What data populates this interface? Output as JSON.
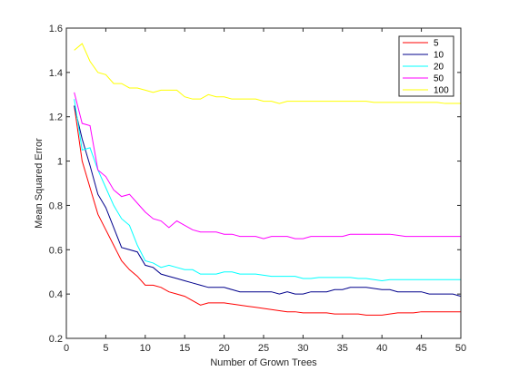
{
  "chart_data": {
    "type": "line",
    "xlabel": "Number of Grown Trees",
    "ylabel": "Mean Squared Error",
    "xlim": [
      0,
      50
    ],
    "ylim": [
      0.2,
      1.6
    ],
    "xticks": [
      0,
      5,
      10,
      15,
      20,
      25,
      30,
      35,
      40,
      45,
      50
    ],
    "yticks": [
      0.2,
      0.4,
      0.6,
      0.8,
      1.0,
      1.2,
      1.4,
      1.6
    ],
    "xtick_labels": [
      "0",
      "5",
      "10",
      "15",
      "20",
      "25",
      "30",
      "35",
      "40",
      "45",
      "50"
    ],
    "ytick_labels": [
      "0.2",
      "0.4",
      "0.6",
      "0.8",
      "1",
      "1.2",
      "1.4",
      "1.6"
    ],
    "grid": false,
    "legend_position": "top-right",
    "x": [
      1,
      2,
      3,
      4,
      5,
      6,
      7,
      8,
      9,
      10,
      11,
      12,
      13,
      14,
      15,
      16,
      17,
      18,
      19,
      20,
      21,
      22,
      23,
      24,
      25,
      26,
      27,
      28,
      29,
      30,
      31,
      32,
      33,
      34,
      35,
      36,
      37,
      38,
      39,
      40,
      41,
      42,
      43,
      44,
      45,
      46,
      47,
      48,
      49,
      50
    ],
    "series": [
      {
        "name": "5",
        "color": "#ff0000",
        "values": [
          1.25,
          1.0,
          0.88,
          0.76,
          0.69,
          0.62,
          0.55,
          0.51,
          0.48,
          0.44,
          0.44,
          0.43,
          0.41,
          0.4,
          0.39,
          0.37,
          0.35,
          0.36,
          0.36,
          0.36,
          0.355,
          0.35,
          0.345,
          0.34,
          0.335,
          0.33,
          0.325,
          0.32,
          0.32,
          0.315,
          0.315,
          0.315,
          0.315,
          0.31,
          0.31,
          0.31,
          0.31,
          0.305,
          0.305,
          0.305,
          0.31,
          0.315,
          0.315,
          0.315,
          0.32,
          0.32,
          0.32,
          0.32,
          0.32,
          0.32
        ]
      },
      {
        "name": "10",
        "color": "#00008b",
        "values": [
          1.25,
          1.1,
          0.98,
          0.85,
          0.79,
          0.7,
          0.61,
          0.6,
          0.59,
          0.53,
          0.52,
          0.49,
          0.48,
          0.47,
          0.46,
          0.45,
          0.44,
          0.43,
          0.43,
          0.43,
          0.42,
          0.41,
          0.41,
          0.41,
          0.41,
          0.41,
          0.4,
          0.41,
          0.4,
          0.4,
          0.41,
          0.41,
          0.41,
          0.42,
          0.42,
          0.43,
          0.43,
          0.43,
          0.425,
          0.42,
          0.42,
          0.41,
          0.41,
          0.41,
          0.41,
          0.4,
          0.4,
          0.4,
          0.4,
          0.39
        ]
      },
      {
        "name": "20",
        "color": "#00ffff",
        "values": [
          1.28,
          1.05,
          1.06,
          0.96,
          0.88,
          0.8,
          0.74,
          0.71,
          0.62,
          0.55,
          0.54,
          0.52,
          0.53,
          0.52,
          0.51,
          0.51,
          0.49,
          0.49,
          0.49,
          0.5,
          0.5,
          0.49,
          0.49,
          0.49,
          0.485,
          0.48,
          0.48,
          0.48,
          0.48,
          0.47,
          0.47,
          0.475,
          0.475,
          0.475,
          0.475,
          0.475,
          0.47,
          0.47,
          0.465,
          0.46,
          0.465,
          0.465,
          0.465,
          0.465,
          0.465,
          0.465,
          0.465,
          0.465,
          0.465,
          0.465
        ]
      },
      {
        "name": "50",
        "color": "#ff00ff",
        "values": [
          1.31,
          1.17,
          1.16,
          0.96,
          0.93,
          0.87,
          0.84,
          0.85,
          0.81,
          0.77,
          0.74,
          0.73,
          0.7,
          0.73,
          0.71,
          0.69,
          0.68,
          0.68,
          0.68,
          0.67,
          0.67,
          0.66,
          0.66,
          0.66,
          0.65,
          0.66,
          0.66,
          0.66,
          0.65,
          0.65,
          0.66,
          0.66,
          0.66,
          0.66,
          0.66,
          0.67,
          0.67,
          0.67,
          0.67,
          0.67,
          0.67,
          0.665,
          0.66,
          0.66,
          0.66,
          0.66,
          0.66,
          0.66,
          0.66,
          0.66
        ]
      },
      {
        "name": "100",
        "color": "#ffff00",
        "values": [
          1.5,
          1.53,
          1.45,
          1.4,
          1.39,
          1.35,
          1.35,
          1.33,
          1.33,
          1.32,
          1.31,
          1.32,
          1.32,
          1.32,
          1.29,
          1.28,
          1.28,
          1.3,
          1.29,
          1.29,
          1.28,
          1.28,
          1.28,
          1.28,
          1.27,
          1.27,
          1.26,
          1.27,
          1.27,
          1.27,
          1.27,
          1.27,
          1.27,
          1.27,
          1.27,
          1.27,
          1.27,
          1.27,
          1.265,
          1.265,
          1.265,
          1.265,
          1.265,
          1.265,
          1.265,
          1.265,
          1.265,
          1.26,
          1.26,
          1.26
        ]
      }
    ]
  }
}
